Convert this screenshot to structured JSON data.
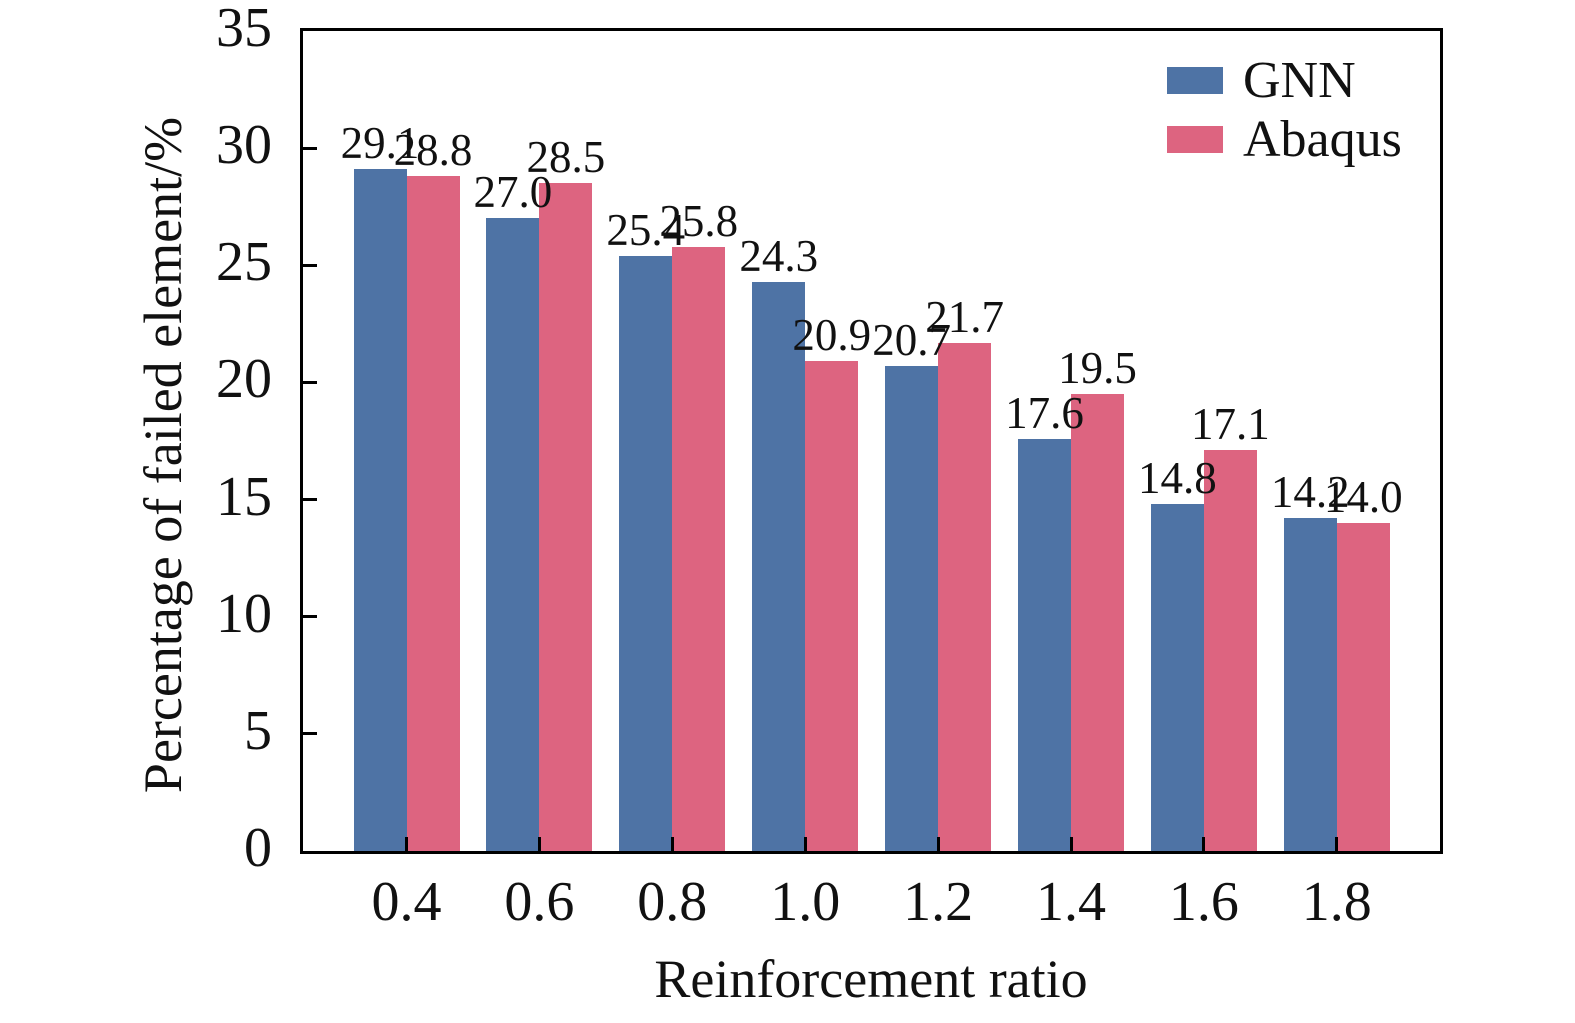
{
  "figure": {
    "background_color": "#ffffff",
    "text_color": "#111111",
    "axis_color": "#000000"
  },
  "chart_data": {
    "type": "bar",
    "title": "",
    "categories": [
      "0.4",
      "0.6",
      "0.8",
      "1.0",
      "1.2",
      "1.4",
      "1.6",
      "1.8"
    ],
    "series": [
      {
        "name": "GNN",
        "color": "#4E73A5",
        "values": [
          29.1,
          27.0,
          25.4,
          24.3,
          20.7,
          17.6,
          14.8,
          14.2
        ],
        "labels": [
          "29.1",
          "27.0",
          "25.4",
          "24.3",
          "20.7",
          "17.6",
          "14.8",
          "14.2"
        ]
      },
      {
        "name": "Abaqus",
        "color": "#DD6480",
        "values": [
          28.8,
          28.5,
          25.8,
          20.9,
          21.7,
          19.5,
          17.1,
          14.0
        ],
        "labels": [
          "28.8",
          "28.5",
          "25.8",
          "20.9",
          "21.7",
          "19.5",
          "17.1",
          "14.0"
        ]
      }
    ],
    "xlabel": "Reinforcement ratio",
    "ylabel": "Percentage of failed element/%",
    "ylim": [
      0,
      35
    ],
    "yticks": [
      0,
      5,
      10,
      15,
      20,
      25,
      30,
      35
    ],
    "grid": false,
    "bar_value_labels": true,
    "legend_position": "top-right",
    "legend_frame": false
  }
}
